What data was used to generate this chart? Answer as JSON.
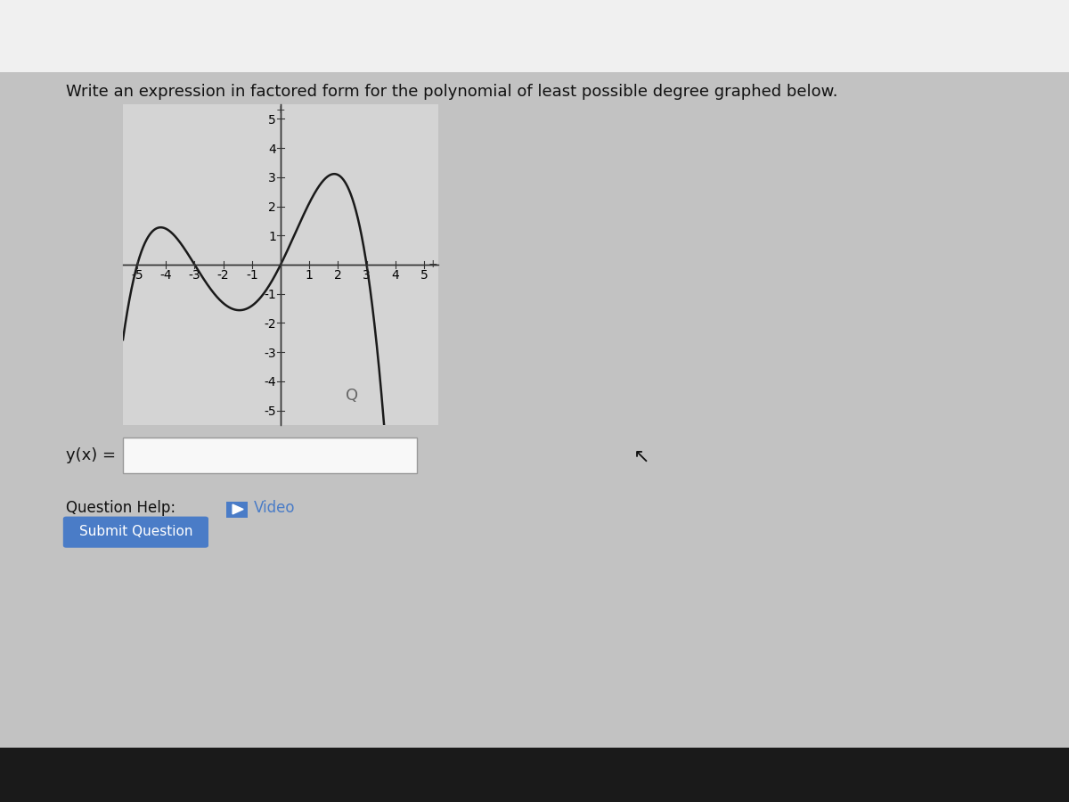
{
  "title": "Write an expression in factored form for the polynomial of least possible degree graphed below.",
  "roots": [
    -5,
    -3,
    0,
    3
  ],
  "leading_coeff": -0.044,
  "xlim": [
    -5.5,
    5.5
  ],
  "ylim": [
    -5.5,
    5.5
  ],
  "xticks": [
    -5,
    -4,
    -3,
    -2,
    -1,
    1,
    2,
    3,
    4,
    5
  ],
  "yticks": [
    -5,
    -4,
    -3,
    -2,
    -1,
    1,
    2,
    3,
    4,
    5
  ],
  "bg_color": "#c2c2c2",
  "plot_bg_color": "#d4d4d4",
  "curve_color": "#1a1a1a",
  "curve_linewidth": 1.8,
  "axis_color": "#333333",
  "tick_label_color": "#222222",
  "title_fontsize": 13,
  "tick_fontsize": 9,
  "submit_bg": "#4a7cc7",
  "video_icon_color": "#4a7cc7",
  "page_bg": "#c2c2c2",
  "white_bg": "#e8e8e8",
  "top_bar_color": "#f0f0f0"
}
